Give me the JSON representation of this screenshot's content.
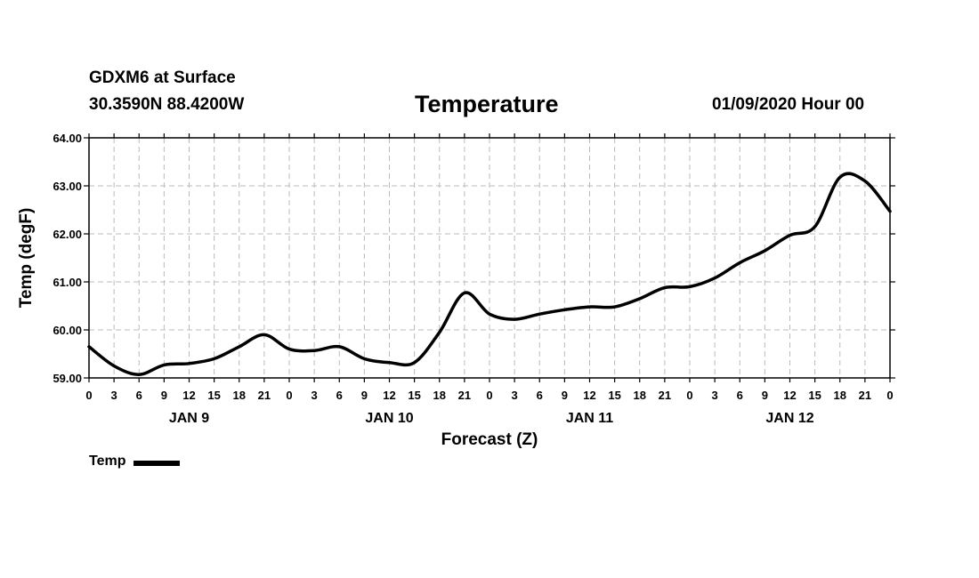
{
  "header": {
    "station": "GDXM6 at Surface",
    "latlon": "30.3590N 88.4200W",
    "title": "Temperature",
    "datetime": "01/09/2020 Hour 00"
  },
  "legend": {
    "label": "Temp",
    "color": "#000000"
  },
  "chart_data": {
    "type": "line",
    "title": "Temperature",
    "xlabel": "Forecast (Z)",
    "ylabel": "Temp (degF)",
    "ylim": [
      59.0,
      64.0
    ],
    "yticks": [
      "59.00",
      "60.00",
      "61.00",
      "62.00",
      "63.00",
      "64.00"
    ],
    "xlim_hours": [
      0,
      96
    ],
    "xtick_labels": [
      "0",
      "3",
      "6",
      "9",
      "12",
      "15",
      "18",
      "21",
      "0",
      "3",
      "6",
      "9",
      "12",
      "15",
      "18",
      "21",
      "0",
      "3",
      "6",
      "9",
      "12",
      "15",
      "18",
      "21",
      "0",
      "3",
      "6",
      "9",
      "12",
      "15",
      "18",
      "21",
      "0"
    ],
    "day_labels": [
      {
        "label": "JAN 9",
        "hour": 12
      },
      {
        "label": "JAN 10",
        "hour": 36
      },
      {
        "label": "JAN 11",
        "hour": 60
      },
      {
        "label": "JAN 12",
        "hour": 84
      }
    ],
    "grid": true,
    "series": [
      {
        "name": "Temp",
        "color": "#000000",
        "x": [
          0,
          3,
          6,
          9,
          12,
          15,
          18,
          21,
          24,
          27,
          30,
          33,
          36,
          39,
          42,
          45,
          48,
          51,
          54,
          57,
          60,
          63,
          66,
          69,
          72,
          75,
          78,
          81,
          84,
          87,
          90,
          93,
          96
        ],
        "y": [
          59.65,
          59.25,
          59.07,
          59.27,
          59.3,
          59.4,
          59.65,
          59.9,
          59.6,
          59.57,
          59.65,
          59.4,
          59.32,
          59.32,
          59.95,
          60.77,
          60.33,
          60.22,
          60.33,
          60.42,
          60.48,
          60.48,
          60.65,
          60.88,
          60.9,
          61.08,
          61.4,
          61.65,
          61.97,
          62.15,
          63.18,
          63.1,
          62.47
        ]
      }
    ]
  }
}
